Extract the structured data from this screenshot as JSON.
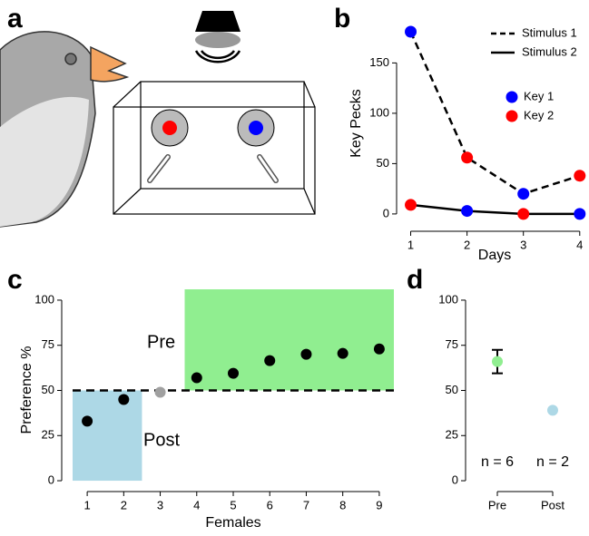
{
  "panel_labels": [
    "a",
    "b",
    "c",
    "d"
  ],
  "chart_data": [
    {
      "type": "line",
      "xlabel": "Days",
      "ylabel": "Key Pecks",
      "x": [
        1,
        2,
        3,
        4
      ],
      "xlim": [
        0.75,
        4.1
      ],
      "xticks": [
        1,
        2,
        3,
        4
      ],
      "ylim": [
        -10,
        190
      ],
      "yticks": [
        0,
        50,
        100,
        150
      ],
      "keys": [
        {
          "name": "Key 1",
          "color": "#0000ff"
        },
        {
          "name": "Key 2",
          "color": "#ff0000"
        }
      ],
      "series": [
        {
          "name": "Stimulus 1",
          "color": "#000000",
          "dashed": true,
          "values": [
            181,
            56,
            20,
            38
          ],
          "point_keys": [
            0,
            1,
            0,
            1
          ]
        },
        {
          "name": "Stimulus 2",
          "color": "#000000",
          "dashed": false,
          "values": [
            9,
            3,
            0,
            0
          ],
          "point_keys": [
            1,
            0,
            1,
            0
          ]
        }
      ]
    },
    {
      "type": "scatter",
      "xlabel": "Females",
      "ylabel": "Preference %",
      "x": [
        1,
        2,
        3,
        4,
        5,
        6,
        7,
        8,
        9
      ],
      "values": [
        33,
        45,
        49,
        57,
        59.5,
        66.5,
        70,
        70.5,
        73
      ],
      "colors": [
        "#000000",
        "#000000",
        "#a0a0a0",
        "#000000",
        "#000000",
        "#000000",
        "#000000",
        "#000000",
        "#000000"
      ],
      "xlim": [
        0.6,
        9.4
      ],
      "xticks": [
        1,
        2,
        3,
        4,
        5,
        6,
        7,
        8,
        9
      ],
      "ylim": [
        -5,
        106
      ],
      "yticks": [
        0,
        25,
        50,
        75,
        100
      ],
      "reference_line": 50,
      "regions": [
        {
          "label": "Post",
          "x": [
            0.6,
            2.5
          ],
          "y": [
            0,
            50
          ],
          "color": "#add8e6"
        },
        {
          "label": "Pre",
          "x": [
            3.67,
            9.4
          ],
          "y": [
            50,
            106
          ],
          "color": "#90ee90"
        }
      ]
    },
    {
      "type": "errorpoint",
      "categories": [
        "Pre",
        "Post"
      ],
      "values": [
        66,
        39
      ],
      "errors": [
        6.5,
        null
      ],
      "colors": [
        "#90ee90",
        "#add8e6"
      ],
      "annotations": [
        "n = 6",
        "n = 2"
      ],
      "ylim": [
        -5,
        106
      ],
      "yticks": [
        0,
        25,
        50,
        75,
        100
      ]
    }
  ]
}
